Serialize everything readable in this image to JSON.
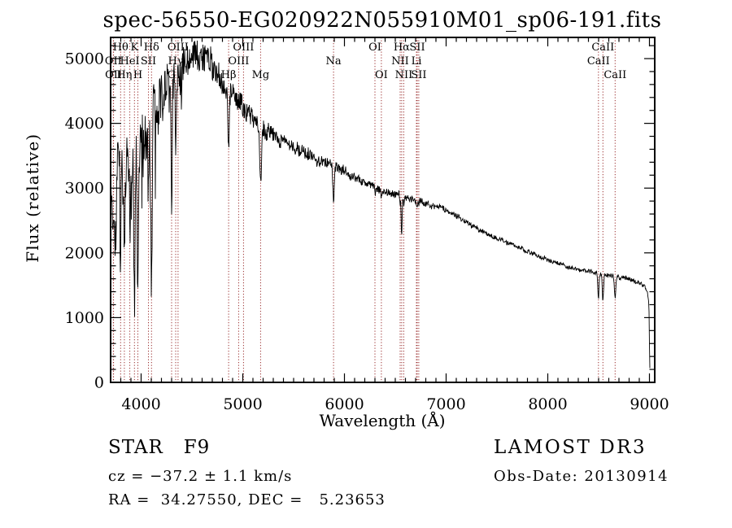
{
  "title": "spec-56550-EG020922N055910M01_sp06-191.fits",
  "axes": {
    "xlabel": "Wavelength (Å)",
    "ylabel": "Flux (relative)"
  },
  "annotations": {
    "classification": "STAR   F9",
    "survey": "LAMOST DR3",
    "cz": "cz = −37.2 ± 1.1 km/s",
    "obs_date": "Obs-Date: 20130914",
    "ra_dec": "RA =  34.27550, DEC =   5.23653"
  },
  "colors": {
    "spectrum": "#000000",
    "line_marker": "#9b3030",
    "background": "#ffffff"
  },
  "chart_data": {
    "type": "line",
    "title": "spec-56550-EG020922N055910M01_sp06-191.fits",
    "xlabel": "Wavelength (Å)",
    "ylabel": "Flux (relative)",
    "x_range": [
      3700,
      9052
    ],
    "y_range": [
      0,
      5327
    ],
    "x_ticks": [
      4000,
      5000,
      6000,
      7000,
      8000,
      9000
    ],
    "y_ticks": [
      0,
      1000,
      2000,
      3000,
      4000,
      5000
    ],
    "x_minor_step": 100,
    "y_minor_step": 200,
    "grid": false,
    "legend": "none",
    "spectrum_end": 9006,
    "continuum": [
      [
        3700,
        2800
      ],
      [
        3715,
        3150
      ],
      [
        3730,
        2450
      ],
      [
        3745,
        2050
      ],
      [
        3758,
        2600
      ],
      [
        3770,
        3650
      ],
      [
        3782,
        3400
      ],
      [
        3800,
        2950
      ],
      [
        3815,
        3350
      ],
      [
        3835,
        2900
      ],
      [
        3855,
        3400
      ],
      [
        3875,
        3350
      ],
      [
        3895,
        3300
      ],
      [
        3915,
        3550
      ],
      [
        3934,
        3500
      ],
      [
        3955,
        3600
      ],
      [
        3975,
        3700
      ],
      [
        4000,
        3850
      ],
      [
        4030,
        3600
      ],
      [
        4060,
        3900
      ],
      [
        4090,
        4000
      ],
      [
        4130,
        4200
      ],
      [
        4170,
        4300
      ],
      [
        4210,
        4420
      ],
      [
        4250,
        4550
      ],
      [
        4290,
        4620
      ],
      [
        4330,
        4700
      ],
      [
        4370,
        4750
      ],
      [
        4410,
        4800
      ],
      [
        4450,
        4870
      ],
      [
        4490,
        4950
      ],
      [
        4530,
        5030
      ],
      [
        4570,
        5060
      ],
      [
        4610,
        5040
      ],
      [
        4660,
        4990
      ],
      [
        4710,
        4900
      ],
      [
        4760,
        4790
      ],
      [
        4810,
        4640
      ],
      [
        4861,
        4500
      ],
      [
        4910,
        4430
      ],
      [
        4960,
        4330
      ],
      [
        5010,
        4230
      ],
      [
        5060,
        4130
      ],
      [
        5110,
        4040
      ],
      [
        5175,
        3920
      ],
      [
        5240,
        3860
      ],
      [
        5320,
        3800
      ],
      [
        5400,
        3740
      ],
      [
        5480,
        3670
      ],
      [
        5560,
        3600
      ],
      [
        5640,
        3530
      ],
      [
        5720,
        3460
      ],
      [
        5800,
        3400
      ],
      [
        5893,
        3340
      ],
      [
        5990,
        3260
      ],
      [
        6080,
        3180
      ],
      [
        6170,
        3100
      ],
      [
        6260,
        3040
      ],
      [
        6350,
        2985
      ],
      [
        6440,
        2940
      ],
      [
        6530,
        2900
      ],
      [
        6620,
        2860
      ],
      [
        6710,
        2810
      ],
      [
        6800,
        2760
      ],
      [
        6890,
        2715
      ],
      [
        6980,
        2665
      ],
      [
        7070,
        2600
      ],
      [
        7160,
        2520
      ],
      [
        7250,
        2430
      ],
      [
        7340,
        2340
      ],
      [
        7430,
        2270
      ],
      [
        7520,
        2215
      ],
      [
        7610,
        2160
      ],
      [
        7700,
        2100
      ],
      [
        7790,
        2040
      ],
      [
        7880,
        1980
      ],
      [
        7970,
        1920
      ],
      [
        8060,
        1860
      ],
      [
        8150,
        1805
      ],
      [
        8240,
        1760
      ],
      [
        8330,
        1725
      ],
      [
        8420,
        1705
      ],
      [
        8510,
        1680
      ],
      [
        8600,
        1650
      ],
      [
        8690,
        1625
      ],
      [
        8760,
        1630
      ],
      [
        8830,
        1590
      ],
      [
        8890,
        1540
      ],
      [
        8940,
        1490
      ],
      [
        8975,
        1440
      ],
      [
        8995,
        1200
      ],
      [
        9002,
        300
      ],
      [
        9006,
        60
      ]
    ],
    "noise_profile": [
      [
        3700,
        420
      ],
      [
        3900,
        400
      ],
      [
        4100,
        380
      ],
      [
        4300,
        330
      ],
      [
        4500,
        260
      ],
      [
        4700,
        200
      ],
      [
        4900,
        170
      ],
      [
        5100,
        150
      ],
      [
        5300,
        120
      ],
      [
        5600,
        95
      ],
      [
        5900,
        80
      ],
      [
        6200,
        65
      ],
      [
        6500,
        55
      ],
      [
        6800,
        45
      ],
      [
        7100,
        40
      ],
      [
        7600,
        33
      ],
      [
        8200,
        30
      ],
      [
        8700,
        33
      ],
      [
        9006,
        35
      ]
    ],
    "absorption_lines": [
      {
        "name": "OII",
        "wavelength": 3726,
        "row": 2,
        "depth": 350,
        "sigma": 6
      },
      {
        "name": "OII",
        "wavelength": 3729,
        "row": 3,
        "depth": 0,
        "sigma": 5
      },
      {
        "name": "Hθ",
        "wavelength": 3798,
        "row": 1,
        "depth": 900,
        "sigma": 5
      },
      {
        "name": "Hη",
        "wavelength": 3835,
        "row": 3,
        "depth": 950,
        "sigma": 5
      },
      {
        "name": "HeI",
        "wavelength": 3889,
        "row": 2,
        "depth": 800,
        "sigma": 5
      },
      {
        "name": "K",
        "wavelength": 3934,
        "row": 1,
        "depth": 2400,
        "sigma": 7
      },
      {
        "name": "H",
        "wavelength": 3968,
        "row": 3,
        "depth": 2000,
        "sigma": 7
      },
      {
        "name": "SII",
        "wavelength": 4072,
        "row": 2,
        "depth": 600,
        "sigma": 5
      },
      {
        "name": "Hδ",
        "wavelength": 4102,
        "row": 1,
        "depth": 2800,
        "sigma": 6
      },
      {
        "name": "G",
        "wavelength": 4300,
        "row": 3,
        "depth": 1800,
        "sigma": 5
      },
      {
        "name": "Hγ",
        "wavelength": 4340,
        "row": 2,
        "depth": 1100,
        "sigma": 6
      },
      {
        "name": "OIII",
        "wavelength": 4363,
        "row": 1,
        "depth": 0,
        "sigma": 5
      },
      {
        "name": "Hβ",
        "wavelength": 4861,
        "row": 3,
        "depth": 900,
        "sigma": 6
      },
      {
        "name": "OIII",
        "wavelength": 4959,
        "row": 2,
        "depth": 0,
        "sigma": 5
      },
      {
        "name": "OIII",
        "wavelength": 5007,
        "row": 1,
        "depth": 0,
        "sigma": 5
      },
      {
        "name": "Mg",
        "wavelength": 5175,
        "row": 3,
        "depth": 850,
        "sigma": 9
      },
      {
        "name": "Na",
        "wavelength": 5893,
        "row": 2,
        "depth": 520,
        "sigma": 7
      },
      {
        "name": "OI",
        "wavelength": 6300,
        "row": 1,
        "depth": 120,
        "sigma": 5
      },
      {
        "name": "OI",
        "wavelength": 6363,
        "row": 3,
        "depth": 90,
        "sigma": 5
      },
      {
        "name": "NII",
        "wavelength": 6548,
        "row": 2,
        "depth": 120,
        "sigma": 4
      },
      {
        "name": "Hα",
        "wavelength": 6563,
        "row": 1,
        "depth": 620,
        "sigma": 5
      },
      {
        "name": "NII",
        "wavelength": 6583,
        "row": 3,
        "depth": 120,
        "sigma": 4
      },
      {
        "name": "Li",
        "wavelength": 6708,
        "row": 2,
        "depth": 60,
        "sigma": 4
      },
      {
        "name": "SII",
        "wavelength": 6716,
        "row": 1,
        "depth": 90,
        "sigma": 4
      },
      {
        "name": "SII",
        "wavelength": 6731,
        "row": 3,
        "depth": 90,
        "sigma": 4
      },
      {
        "name": "CaII",
        "wavelength": 8498,
        "row": 2,
        "depth": 380,
        "sigma": 6
      },
      {
        "name": "CaII",
        "wavelength": 8542,
        "row": 1,
        "depth": 420,
        "sigma": 6
      },
      {
        "name": "CaII",
        "wavelength": 8662,
        "row": 3,
        "depth": 320,
        "sigma": 6
      }
    ]
  }
}
